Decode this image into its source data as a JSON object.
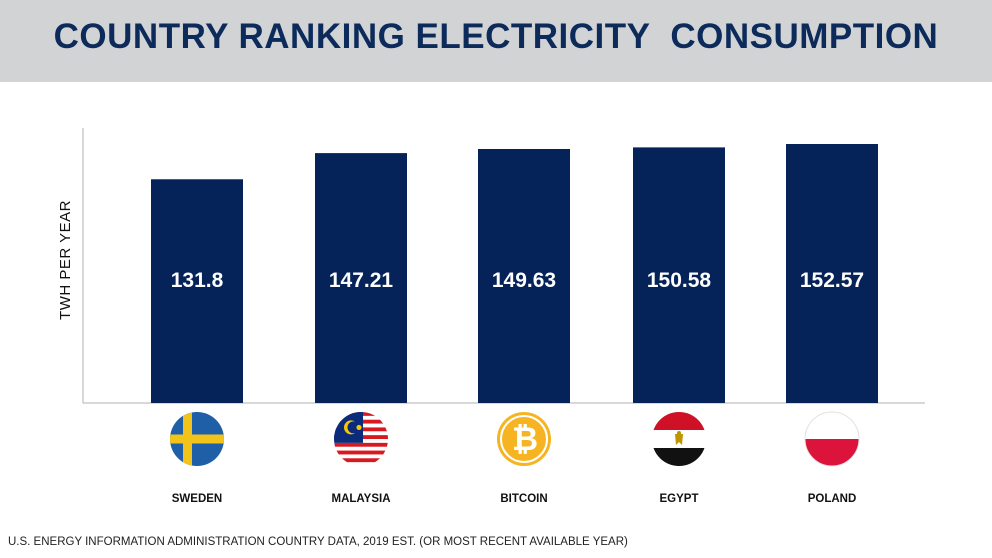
{
  "header": {
    "title": "COUNTRY RANKING ELECTRICITY  CONSUMPTION"
  },
  "chart_data": {
    "type": "bar",
    "categories": [
      "SWEDEN",
      "MALAYSIA",
      "BITCOIN",
      "EGYPT",
      "POLAND"
    ],
    "values": [
      131.8,
      147.21,
      149.63,
      150.58,
      152.57
    ],
    "value_labels": [
      "131.8",
      "147.21",
      "149.63",
      "150.58",
      "152.57"
    ],
    "ylabel": "TWH PER YEAR",
    "xlabel": "",
    "ylim": [
      0,
      162
    ],
    "grid": false,
    "bar_color": "#052358",
    "category_icons": [
      "sweden-flag-icon",
      "malaysia-flag-icon",
      "bitcoin-icon",
      "egypt-flag-icon",
      "poland-flag-icon"
    ]
  },
  "footer": {
    "source": "U.S. ENERGY INFORMATION ADMINISTRATION COUNTRY DATA, 2019 EST. (OR MOST RECENT AVAILABLE YEAR)"
  },
  "colors": {
    "header_bg": "#d1d3d4",
    "title": "#0c2a5a",
    "bar": "#052358",
    "axis": "#b0b0b0"
  }
}
